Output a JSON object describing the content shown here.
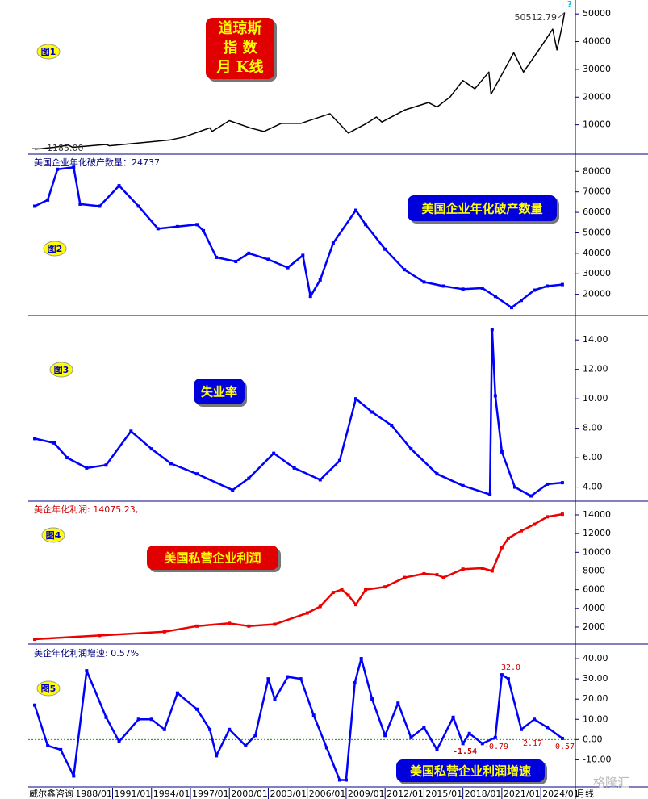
{
  "chart_data": [
    {
      "type": "line",
      "title": "",
      "badge": "图1",
      "title_lines": [
        "道琼斯",
        "指  数",
        "月 K线"
      ],
      "max_label": "50512.79",
      "min_label": "1185.00",
      "help_icon": "?",
      "ylim": [
        0,
        55000
      ],
      "yticks": [
        10000,
        20000,
        30000,
        40000,
        50000
      ],
      "x": [
        "1985/01",
        "1986/07",
        "1987/08",
        "1987/12",
        "1990/07",
        "1990/10",
        "1994/01",
        "1995/07",
        "1996/07",
        "1998/07",
        "1998/09",
        "2000/01",
        "2001/09",
        "2002/09",
        "2004/01",
        "2005/07",
        "2007/10",
        "2009/03",
        "2010/07",
        "2011/05",
        "2011/10",
        "2013/07",
        "2015/05",
        "2016/01",
        "2017/01",
        "2018/01",
        "2018/12",
        "2020/01",
        "2020/03",
        "2021/12",
        "2022/09",
        "2024/01",
        "2024/12",
        "2025/04",
        "2025/09",
        "2025/11"
      ],
      "series": [
        {
          "color": "#000000",
          "values": [
            1185,
            1900,
            2700,
            1900,
            2900,
            2450,
            3900,
            4600,
            5600,
            8900,
            7600,
            11500,
            8800,
            7600,
            10500,
            10500,
            14000,
            7000,
            10300,
            12800,
            11000,
            15300,
            18000,
            16400,
            20000,
            26000,
            23000,
            29000,
            21000,
            36000,
            29000,
            38000,
            44500,
            37000,
            46000,
            50512.79
          ]
        }
      ]
    },
    {
      "type": "line",
      "title": "美国企业年化破产数量：24737",
      "badge": "图2",
      "ylim": [
        10000,
        88000
      ],
      "yticks": [
        20000,
        30000,
        40000,
        50000,
        60000,
        70000,
        80000
      ],
      "x": [
        "1985/01",
        "1986/01",
        "1986/10",
        "1988/01",
        "1988/07",
        "1990/01",
        "1991/07",
        "1993/01",
        "1994/07",
        "1996/01",
        "1997/07",
        "1998/01",
        "1999/01",
        "2000/07",
        "2001/07",
        "2003/01",
        "2004/07",
        "2005/09",
        "2006/04",
        "2007/01",
        "2008/01",
        "2009/10",
        "2010/07",
        "2012/01",
        "2013/07",
        "2015/01",
        "2016/07",
        "2018/01",
        "2019/07",
        "2020/07",
        "2021/10",
        "2022/07",
        "2023/07",
        "2024/07",
        "2025/09"
      ],
      "series": [
        {
          "name": "美国企业年化破产数量",
          "color": "#0000ff",
          "values": [
            63000,
            66000,
            81000,
            82000,
            64000,
            63000,
            73000,
            63000,
            52000,
            53000,
            54000,
            51000,
            38000,
            36000,
            40000,
            37000,
            33000,
            39000,
            19000,
            27000,
            45000,
            61000,
            54000,
            42000,
            32000,
            26000,
            24000,
            22500,
            23000,
            19000,
            13500,
            17000,
            22000,
            24000,
            24737
          ]
        }
      ]
    },
    {
      "type": "line",
      "title": "",
      "badge": "图3",
      "ylim": [
        3.1,
        15.6
      ],
      "yticks": [
        {
          "value": 4,
          "label": "4.00"
        },
        {
          "value": 6,
          "label": "6.00"
        },
        {
          "value": 8,
          "label": "8.00"
        },
        {
          "value": 10,
          "label": "10.00"
        },
        {
          "value": 12,
          "label": "12.00"
        },
        {
          "value": 14,
          "label": "14.00"
        }
      ],
      "x": [
        "1985/01",
        "1986/07",
        "1987/07",
        "1989/01",
        "1990/07",
        "1992/06",
        "1994/01",
        "1995/07",
        "1997/07",
        "2000/04",
        "2001/07",
        "2003/06",
        "2005/01",
        "2007/01",
        "2008/07",
        "2009/10",
        "2011/01",
        "2012/07",
        "2014/01",
        "2016/01",
        "2018/01",
        "2020/02",
        "2020/04",
        "2020/07",
        "2021/01",
        "2022/01",
        "2023/04",
        "2024/07",
        "2025/09"
      ],
      "series": [
        {
          "name": "失业率",
          "color": "#0000ff",
          "values": [
            7.3,
            7.0,
            6.0,
            5.3,
            5.5,
            7.8,
            6.6,
            5.6,
            4.9,
            3.8,
            4.6,
            6.3,
            5.3,
            4.5,
            5.8,
            10.0,
            9.1,
            8.2,
            6.6,
            4.9,
            4.1,
            3.5,
            14.7,
            10.2,
            6.4,
            4.0,
            3.4,
            4.2,
            4.3
          ]
        }
      ]
    },
    {
      "type": "line",
      "title": "美企年化利润: 14075.23,",
      "badge": "图4",
      "ylim": [
        270,
        15380
      ],
      "yticks": [
        2000,
        4000,
        6000,
        8000,
        10000,
        12000,
        14000
      ],
      "x": [
        "1985/01",
        "1990/01",
        "1995/01",
        "1997/07",
        "2000/01",
        "2001/07",
        "2003/07",
        "2006/01",
        "2007/01",
        "2008/01",
        "2008/09",
        "2009/03",
        "2009/10",
        "2010/07",
        "2012/01",
        "2013/07",
        "2015/01",
        "2016/01",
        "2016/07",
        "2018/01",
        "2019/07",
        "2020/04",
        "2021/01",
        "2021/07",
        "2022/07",
        "2023/07",
        "2024/07",
        "2025/09"
      ],
      "series": [
        {
          "name": "美国私营企业利润",
          "color": "#ee0000",
          "values": [
            700,
            1100,
            1500,
            2100,
            2400,
            2100,
            2300,
            3500,
            4200,
            5700,
            6000,
            5400,
            4400,
            6000,
            6300,
            7300,
            7700,
            7600,
            7300,
            8200,
            8300,
            8000,
            10500,
            11500,
            12300,
            13000,
            13800,
            14075.23
          ]
        }
      ]
    },
    {
      "type": "line",
      "title": "美企年化利润增速: 0.57%",
      "badge": "图5",
      "zero_line": true,
      "annotations": [
        "32.0",
        "-1.54",
        "-0.79",
        "2.17",
        "0.57"
      ],
      "ylim": [
        -23.4,
        46.4
      ],
      "yticks": [
        {
          "value": -10,
          "label": "-10.00"
        },
        {
          "value": 0,
          "label": "0.00"
        },
        {
          "value": 10,
          "label": "10.00"
        },
        {
          "value": 20,
          "label": "20.00"
        },
        {
          "value": 30,
          "label": "30.00"
        },
        {
          "value": 40,
          "label": "40.00"
        }
      ],
      "x": [
        "1985/01",
        "1986/01",
        "1987/01",
        "1988/01",
        "1989/01",
        "1990/07",
        "1991/07",
        "1993/01",
        "1994/01",
        "1995/01",
        "1996/01",
        "1997/07",
        "1998/07",
        "1999/01",
        "2000/01",
        "2001/04",
        "2002/01",
        "2003/01",
        "2003/07",
        "2004/07",
        "2005/07",
        "2006/07",
        "2007/07",
        "2008/07",
        "2009/01",
        "2009/09",
        "2010/03",
        "2011/01",
        "2012/01",
        "2013/01",
        "2014/01",
        "2015/01",
        "2016/01",
        "2017/04",
        "2018/01",
        "2018/07",
        "2019/07",
        "2020/07",
        "2021/01",
        "2021/07",
        "2022/07",
        "2023/07",
        "2024/07",
        "2025/09"
      ],
      "series": [
        {
          "name": "美国私营企业利润增速",
          "color": "#0000ff",
          "values": [
            17,
            -3,
            -5,
            -18,
            34,
            11,
            -1,
            10,
            10,
            5,
            23,
            15,
            5,
            -8,
            5,
            -3,
            2,
            30,
            20,
            31,
            30,
            12,
            -4,
            -20,
            -20,
            28,
            40,
            20,
            2,
            18,
            1,
            6,
            -5,
            11,
            -2,
            3,
            -2,
            1,
            32,
            30,
            5,
            10,
            6,
            0.57
          ]
        }
      ]
    }
  ],
  "time_axis": {
    "xlim": [
      "1984/07",
      "2026/09"
    ],
    "ticks": [
      "1988/01",
      "1991/01",
      "1994/01",
      "1997/01",
      "2000/01",
      "2003/01",
      "2006/01",
      "2009/01",
      "2012/01",
      "2015/01",
      "2018/01",
      "2021/01",
      "2024/01"
    ]
  },
  "footer": {
    "source": "威尔鑫咨询",
    "period": "月线",
    "watermark": "格隆汇"
  }
}
